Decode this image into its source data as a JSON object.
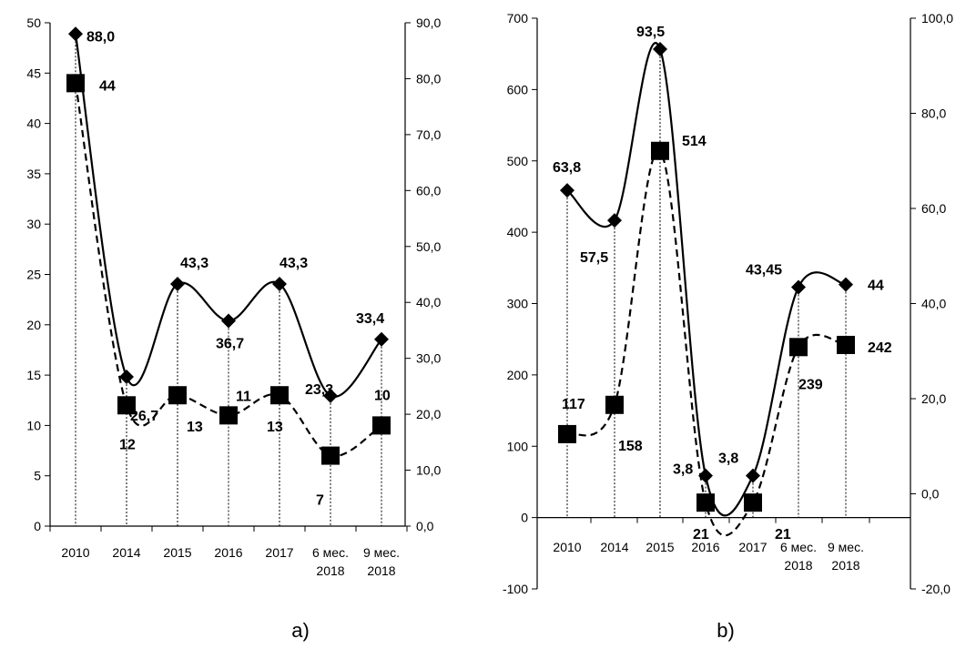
{
  "chart_data": [
    {
      "caption": "a)",
      "type": "line",
      "categories": [
        [
          "2010"
        ],
        [
          "2014"
        ],
        [
          "2015"
        ],
        [
          "2016"
        ],
        [
          "2017"
        ],
        [
          "6 мес.",
          "2018"
        ],
        [
          "9 мес.",
          "2018"
        ]
      ],
      "left_axis": {
        "ylim": [
          0,
          50
        ],
        "ticks": [
          "0",
          "5",
          "10",
          "15",
          "20",
          "25",
          "30",
          "35",
          "40",
          "45",
          "50"
        ]
      },
      "right_axis": {
        "ylim": [
          0,
          90
        ],
        "ticks": [
          "0,0",
          "10,0",
          "20,0",
          "30,0",
          "40,0",
          "50,0",
          "60,0",
          "70,0",
          "80,0",
          "90,0"
        ]
      },
      "series": [
        {
          "axis": "right",
          "style": "solid",
          "marker": "diamond",
          "values": [
            88.0,
            26.7,
            43.3,
            36.7,
            43.3,
            23.3,
            33.4
          ],
          "labels": [
            "88,0",
            "26,7",
            "43,3",
            "36,7",
            "43,3",
            "23,3",
            "33,4"
          ]
        },
        {
          "axis": "left",
          "style": "dashed",
          "marker": "square",
          "values": [
            44,
            12,
            13,
            11,
            13,
            7,
            10
          ],
          "labels": [
            "44",
            "12",
            "13",
            "11",
            "13",
            "7",
            "10"
          ]
        }
      ],
      "grid": false
    },
    {
      "caption": "b)",
      "type": "line",
      "categories": [
        [
          "2010"
        ],
        [
          "2014"
        ],
        [
          "2015"
        ],
        [
          "2016"
        ],
        [
          "2017"
        ],
        [
          "6 мес.",
          "2018"
        ],
        [
          "9 мес.",
          "2018"
        ]
      ],
      "left_axis": {
        "ylim": [
          -100,
          700
        ],
        "ticks": [
          "-100",
          "0",
          "100",
          "200",
          "300",
          "400",
          "500",
          "600",
          "700"
        ]
      },
      "right_axis": {
        "ylim": [
          -20,
          100
        ],
        "ticks": [
          "-20,0",
          "0,0",
          "20,0",
          "40,0",
          "60,0",
          "80,0",
          "100,0"
        ]
      },
      "series": [
        {
          "axis": "right",
          "style": "solid",
          "marker": "diamond",
          "values": [
            63.8,
            57.5,
            93.5,
            3.8,
            3.8,
            43.45,
            44
          ],
          "labels": [
            "63,8",
            "57,5",
            "93,5",
            "3,8",
            "3,8",
            "43,45",
            "44"
          ]
        },
        {
          "axis": "left",
          "style": "dashed",
          "marker": "square",
          "values": [
            117,
            158,
            514,
            21,
            21,
            239,
            242
          ],
          "labels": [
            "117",
            "158",
            "514",
            "21",
            "21",
            "239",
            "242"
          ]
        }
      ],
      "grid": false
    }
  ]
}
